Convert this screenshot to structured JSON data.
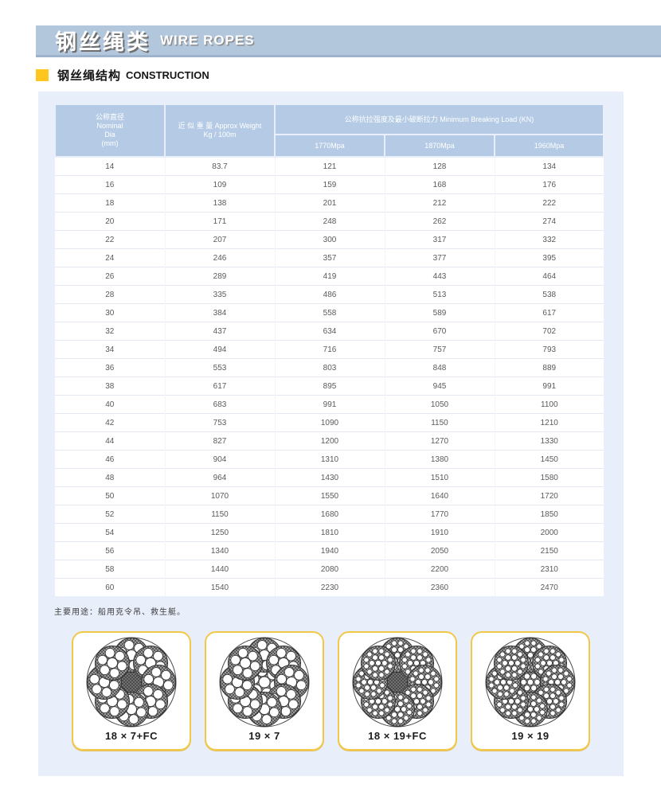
{
  "banner": {
    "title_cn": "钢丝绳类",
    "title_en": "WIRE ROPES"
  },
  "section": {
    "title_cn": "钢丝绳结构",
    "title_en": "CONSTRUCTION"
  },
  "table": {
    "header": {
      "dia_lines": [
        "公称直径",
        "Nominal",
        "Dia",
        "(mm)"
      ],
      "weight_lines": [
        "近 似 重 量 Approx Weight",
        "Kg / 100m"
      ],
      "breaking_load": "公称抗拉强度及最小破断拉力 Minimum Breaking Load (KN)",
      "grades": [
        "1770Mpa",
        "1870Mpa",
        "1960Mpa"
      ]
    },
    "rows": [
      [
        "14",
        "83.7",
        "121",
        "128",
        "134"
      ],
      [
        "16",
        "109",
        "159",
        "168",
        "176"
      ],
      [
        "18",
        "138",
        "201",
        "212",
        "222"
      ],
      [
        "20",
        "171",
        "248",
        "262",
        "274"
      ],
      [
        "22",
        "207",
        "300",
        "317",
        "332"
      ],
      [
        "24",
        "246",
        "357",
        "377",
        "395"
      ],
      [
        "26",
        "289",
        "419",
        "443",
        "464"
      ],
      [
        "28",
        "335",
        "486",
        "513",
        "538"
      ],
      [
        "30",
        "384",
        "558",
        "589",
        "617"
      ],
      [
        "32",
        "437",
        "634",
        "670",
        "702"
      ],
      [
        "34",
        "494",
        "716",
        "757",
        "793"
      ],
      [
        "36",
        "553",
        "803",
        "848",
        "889"
      ],
      [
        "38",
        "617",
        "895",
        "945",
        "991"
      ],
      [
        "40",
        "683",
        "991",
        "1050",
        "1100"
      ],
      [
        "42",
        "753",
        "1090",
        "1150",
        "1210"
      ],
      [
        "44",
        "827",
        "1200",
        "1270",
        "1330"
      ],
      [
        "46",
        "904",
        "1310",
        "1380",
        "1450"
      ],
      [
        "48",
        "964",
        "1430",
        "1510",
        "1580"
      ],
      [
        "50",
        "1070",
        "1550",
        "1640",
        "1720"
      ],
      [
        "52",
        "1150",
        "1680",
        "1770",
        "1850"
      ],
      [
        "54",
        "1250",
        "1810",
        "1910",
        "2000"
      ],
      [
        "56",
        "1340",
        "1940",
        "2050",
        "2150"
      ],
      [
        "58",
        "1440",
        "2080",
        "2200",
        "2310"
      ],
      [
        "60",
        "1540",
        "2230",
        "2360",
        "2470"
      ]
    ]
  },
  "note": "主要用途：船用克令吊、救生艇。",
  "diagrams": {
    "items": [
      {
        "label": "18 × 7+FC",
        "core": "fiber",
        "wires": 7
      },
      {
        "label": "19 × 7",
        "core": "wire",
        "wires": 7
      },
      {
        "label": "18 × 19+FC",
        "core": "fiber",
        "wires": 19
      },
      {
        "label": "19 × 19",
        "core": "wire",
        "wires": 19
      }
    ]
  },
  "colors": {
    "banner_bg": "#b2c6dc",
    "panel_bg": "#e9effa",
    "table_header_bg": "#b5cbe5",
    "accent_yellow": "#ffc61e",
    "card_border": "#f2c84b"
  }
}
